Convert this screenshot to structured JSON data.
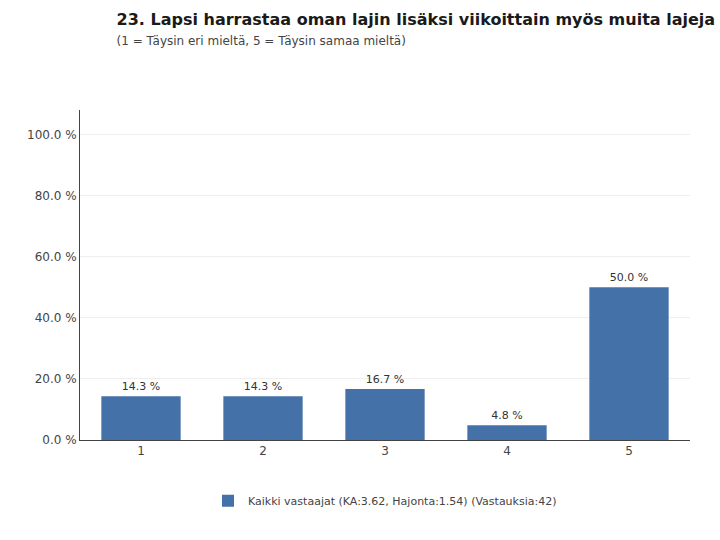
{
  "chart_data": {
    "type": "bar",
    "title": "23. Lapsi harrastaa oman lajin lisäksi viikoittain myös muita lajeja",
    "subtitle": "(1 = Täysin eri mieltä, 5 = Täysin samaa mieltä)",
    "categories": [
      1,
      2,
      3,
      4,
      5
    ],
    "series": [
      {
        "name": "Kaikki vastaajat (KA:3.62, Hajonta:1.54) (Vastauksia:42)",
        "color": "#4472A8",
        "values": [
          14.3,
          14.3,
          16.7,
          4.8,
          50.0
        ],
        "value_labels": [
          "14.3 %",
          "14.3 %",
          "16.7 %",
          "4.8 %",
          "50.0 %"
        ]
      }
    ],
    "ylim": [
      0,
      108
    ],
    "yticks": [
      {
        "value": 0,
        "label": "0.0 %"
      },
      {
        "value": 20,
        "label": "20.0 %"
      },
      {
        "value": 40,
        "label": "40.0 %"
      },
      {
        "value": 60,
        "label": "60.0 %"
      },
      {
        "value": 80,
        "label": "80.0 %"
      },
      {
        "value": 100,
        "label": "100.0 %"
      }
    ],
    "grid": true,
    "legend": "bottom",
    "data_labels": true
  }
}
